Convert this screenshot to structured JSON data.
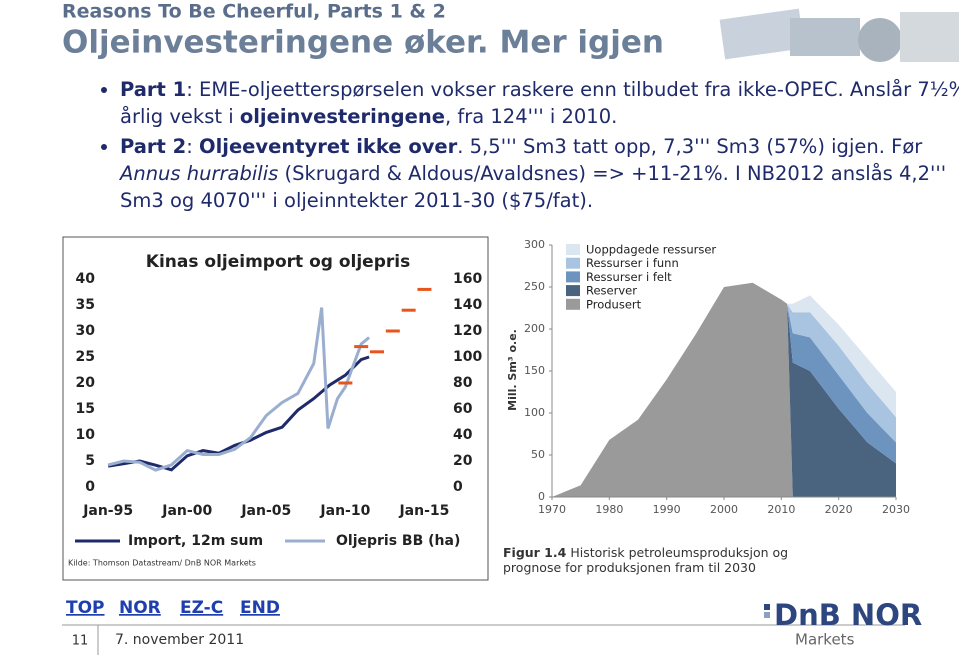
{
  "header": {
    "kicker": "Reasons To Be Cheerful, Parts 1 & 2",
    "title": "Oljeinvesteringene øker. Mer igjen"
  },
  "bullets": [
    {
      "segments": [
        {
          "text": "Part 1",
          "bold": true
        },
        {
          "text": ": EME-oljeetterspørselen vokser raskere enn tilbudet fra ikke-OPEC. Anslår 7½% årlig vekst i "
        },
        {
          "text": "oljeinvesteringene",
          "bold": true
        },
        {
          "text": ", fra 124''' i 2010."
        }
      ]
    },
    {
      "segments": [
        {
          "text": "Part 2",
          "bold": true
        },
        {
          "text": ": "
        },
        {
          "text": "Oljeeventyret ikke over",
          "bold": true
        },
        {
          "text": ". 5,5''' Sm3 tatt opp, 7,3''' Sm3 (57%) igjen. Før "
        },
        {
          "text": "Annus hurrabilis",
          "italic": true
        },
        {
          "text": " (Skrugard & Aldous/Avaldsnes) => +11-21%. I NB2012 anslås 4,2''' Sm3 og 4070''' i oljeinntekter 2011-30 ($75/fat)."
        }
      ]
    }
  ],
  "chart_data": [
    {
      "type": "line",
      "title": "Kinas oljeimport og oljepris",
      "source": "Kilde: Thomson Datastream/ DnB NOR Markets",
      "xlim": [
        1994.8,
        2016.3
      ],
      "xticks": [
        {
          "value": 1995,
          "label": "Jan-95"
        },
        {
          "value": 2000,
          "label": "Jan-00"
        },
        {
          "value": 2005,
          "label": "Jan-05"
        },
        {
          "value": 2010,
          "label": "Jan-10"
        },
        {
          "value": 2015,
          "label": "Jan-15"
        }
      ],
      "ylim": [
        0,
        40
      ],
      "yticks": [
        0,
        5,
        10,
        15,
        20,
        25,
        30,
        35,
        40
      ],
      "y2lim": [
        0,
        160
      ],
      "y2ticks": [
        0,
        20,
        40,
        60,
        80,
        100,
        120,
        140,
        160
      ],
      "series": [
        {
          "name": "Import, 12m sum",
          "color": "#1f2a6b",
          "x": [
            1995,
            1996,
            1997,
            1998,
            1999,
            2000,
            2001,
            2002,
            2003,
            2004,
            2005,
            2006,
            2007,
            2008,
            2009,
            2010,
            2011,
            2011.5
          ],
          "values": [
            4,
            4.5,
            5,
            4.2,
            3.3,
            6,
            7,
            6.5,
            8,
            9,
            10.5,
            11.5,
            14.8,
            17,
            19.6,
            21.5,
            24.5,
            25
          ]
        },
        {
          "name": "Oljepris BB (ha)",
          "color": "#9aaed0",
          "axis": "y2",
          "x": [
            1995,
            1996,
            1997,
            1998,
            1999,
            2000,
            2001,
            2002,
            2003,
            2004,
            2005,
            2006,
            2007,
            2008,
            2008.5,
            2008.9,
            2009.5,
            2010,
            2011,
            2011.5
          ],
          "values": [
            17,
            20,
            19,
            13,
            17,
            28,
            25,
            25,
            29,
            38,
            55,
            65,
            72,
            95,
            138,
            45,
            68,
            77,
            110,
            115
          ]
        },
        {
          "color": "#e8541c",
          "line": false,
          "x": [
            2010,
            2011,
            2012,
            2013,
            2014,
            2015
          ],
          "values": [
            20,
            27,
            26,
            30,
            34,
            38
          ]
        }
      ]
    },
    {
      "type": "area",
      "stacked": true,
      "ylabel": "Mill. Sm³ o.e.",
      "caption_label": "Figur 1.4",
      "caption": "Historisk petroleumsproduksjon og prognose for produksjonen fram til 2030",
      "xlim": [
        1970,
        2030
      ],
      "xticks": [
        1970,
        1980,
        1990,
        2000,
        2010,
        2020,
        2030
      ],
      "ylim": [
        0,
        300
      ],
      "yticks": [
        0,
        50,
        100,
        150,
        200,
        250,
        300
      ],
      "x": [
        1970,
        1975,
        1980,
        1985,
        1990,
        1995,
        2000,
        2005,
        2010,
        2011,
        2012,
        2015,
        2020,
        2025,
        2030
      ],
      "series": [
        {
          "name": "Uoppdagede ressurser",
          "color": "#dce6f0",
          "values": [
            0,
            0,
            0,
            0,
            0,
            0,
            0,
            0,
            0,
            0,
            10,
            20,
            25,
            30,
            30
          ]
        },
        {
          "name": "Ressurser i funn",
          "color": "#a9c4e0",
          "values": [
            0,
            0,
            0,
            0,
            0,
            0,
            0,
            0,
            0,
            0,
            25,
            30,
            35,
            35,
            30
          ]
        },
        {
          "name": "Ressurser i felt",
          "color": "#6d94bf",
          "values": [
            0,
            0,
            0,
            0,
            0,
            0,
            0,
            0,
            0,
            0,
            35,
            40,
            40,
            35,
            25
          ]
        },
        {
          "name": "Reserver",
          "color": "#4a6480",
          "values": [
            0,
            0,
            0,
            0,
            0,
            0,
            0,
            0,
            0,
            0,
            160,
            150,
            105,
            65,
            40
          ]
        },
        {
          "name": "Produsert",
          "color": "#9a9a9a",
          "values": [
            0,
            14,
            68,
            92,
            140,
            193,
            250,
            255,
            235,
            230,
            0,
            0,
            0,
            0,
            0
          ]
        }
      ]
    }
  ],
  "footer": {
    "nav": [
      "TOP",
      "NOR",
      "EZ-C",
      "END"
    ],
    "page": "11",
    "date": "7. november 2011",
    "logo": "DnB NOR",
    "logo_sub": "Markets"
  }
}
